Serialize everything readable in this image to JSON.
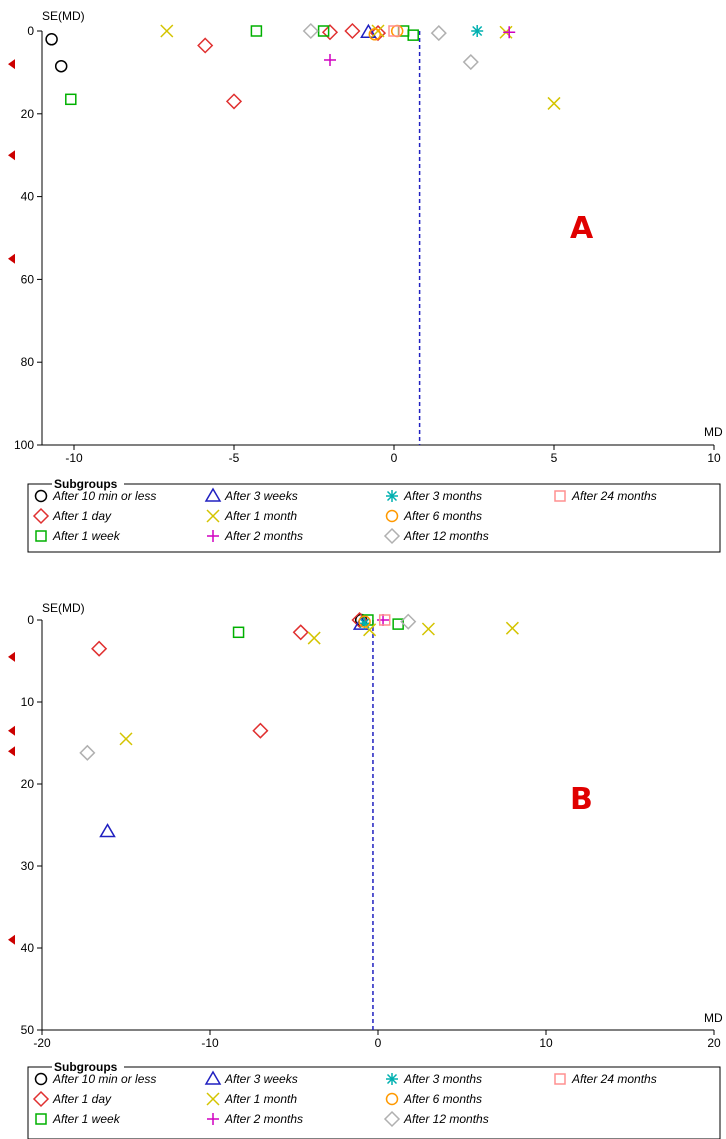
{
  "panels": [
    {
      "letter": "A",
      "chart_data": {
        "type": "scatter",
        "title": "",
        "ylabel": "SE(MD)",
        "xlabel": "MD",
        "xlim": [
          -11,
          10
        ],
        "ylim": [
          0,
          100
        ],
        "y_reversed": true,
        "x_ticks": [
          -10,
          -5,
          0,
          5,
          10
        ],
        "y_ticks": [
          0,
          20,
          40,
          60,
          80,
          100
        ],
        "reference_line_x": 0.8,
        "left_arrow_y": [
          8,
          30,
          55
        ],
        "legend_position": "bottom",
        "series": [
          {
            "name": "After 10 min or less",
            "marker": "circle",
            "color": "#000000",
            "points": [
              [
                -10.7,
                2
              ],
              [
                -10.4,
                8.5
              ]
            ]
          },
          {
            "name": "After 1 day",
            "marker": "diamond",
            "color": "#e03030",
            "points": [
              [
                -5.9,
                3.5
              ],
              [
                -5.0,
                17
              ],
              [
                -2.0,
                0.3
              ],
              [
                -1.3,
                0
              ],
              [
                -0.5,
                0.5
              ]
            ]
          },
          {
            "name": "After 1 week",
            "marker": "square",
            "color": "#00b000",
            "points": [
              [
                -10.1,
                16.5
              ],
              [
                -4.3,
                0
              ],
              [
                -2.2,
                0
              ],
              [
                0.3,
                0
              ],
              [
                0.6,
                1
              ]
            ]
          },
          {
            "name": "After 3 weeks",
            "marker": "triangle",
            "color": "#2020c0",
            "points": [
              [
                -0.8,
                0.3
              ]
            ]
          },
          {
            "name": "After 1 month",
            "marker": "x",
            "color": "#d4c400",
            "points": [
              [
                -7.1,
                0
              ],
              [
                -0.5,
                0
              ],
              [
                3.5,
                0.3
              ],
              [
                5.0,
                17.5
              ]
            ]
          },
          {
            "name": "After 2 months",
            "marker": "plus",
            "color": "#d000c0",
            "points": [
              [
                -2.0,
                7
              ],
              [
                3.6,
                0.3
              ]
            ]
          },
          {
            "name": "After 3 months",
            "marker": "asterisk",
            "color": "#00b0b0",
            "points": [
              [
                2.6,
                0
              ]
            ]
          },
          {
            "name": "After 6 months",
            "marker": "circle",
            "color": "#ff9900",
            "points": [
              [
                -0.6,
                0.8
              ],
              [
                0.1,
                0
              ]
            ]
          },
          {
            "name": "After 12 months",
            "marker": "diamond",
            "color": "#b0b0b0",
            "points": [
              [
                -2.6,
                0
              ],
              [
                1.4,
                0.5
              ],
              [
                2.4,
                7.5
              ]
            ]
          },
          {
            "name": "After 24 months",
            "marker": "square",
            "color": "#ff9090",
            "points": [
              [
                0.0,
                0
              ]
            ]
          }
        ]
      },
      "legend": {
        "title": "Subgroups",
        "items": [
          "After 10 min or less",
          "After 3 weeks",
          "After 3 months",
          "After 24 months",
          "After 1 day",
          "After 1 month",
          "After 6 months",
          "After 1 week",
          "After 2 months",
          "After 12 months"
        ]
      }
    },
    {
      "letter": "B",
      "chart_data": {
        "type": "scatter",
        "title": "",
        "ylabel": "SE(MD)",
        "xlabel": "MD",
        "xlim": [
          -20,
          20
        ],
        "ylim": [
          0,
          50
        ],
        "y_reversed": true,
        "x_ticks": [
          -20,
          -10,
          0,
          10,
          20
        ],
        "y_ticks": [
          0,
          10,
          20,
          30,
          40,
          50
        ],
        "reference_line_x": -0.3,
        "left_arrow_y": [
          4.5,
          13.5,
          16,
          39
        ],
        "legend_position": "bottom",
        "series": [
          {
            "name": "After 10 min or less",
            "marker": "circle",
            "color": "#000000",
            "points": [
              [
                -1.0,
                0
              ]
            ]
          },
          {
            "name": "After 1 day",
            "marker": "diamond",
            "color": "#e03030",
            "points": [
              [
                -16.6,
                3.5
              ],
              [
                -7.0,
                13.5
              ],
              [
                -4.6,
                1.5
              ],
              [
                -1.1,
                0
              ]
            ]
          },
          {
            "name": "After 1 week",
            "marker": "square",
            "color": "#00b000",
            "points": [
              [
                -8.3,
                1.5
              ],
              [
                -0.6,
                0
              ],
              [
                1.2,
                0.5
              ]
            ]
          },
          {
            "name": "After 3 weeks",
            "marker": "triangle",
            "color": "#2020c0",
            "points": [
              [
                -16.1,
                25.8
              ],
              [
                -1.0,
                0.5
              ]
            ]
          },
          {
            "name": "After 1 month",
            "marker": "x",
            "color": "#d4c400",
            "points": [
              [
                -15.0,
                14.5
              ],
              [
                -3.8,
                2.2
              ],
              [
                -0.5,
                1.2
              ],
              [
                3.0,
                1.1
              ],
              [
                8.0,
                1.0
              ]
            ]
          },
          {
            "name": "After 2 months",
            "marker": "plus",
            "color": "#d000c0",
            "points": [
              [
                0.3,
                0
              ]
            ]
          },
          {
            "name": "After 3 months",
            "marker": "asterisk",
            "color": "#00b0b0",
            "points": [
              [
                -0.8,
                0.4
              ]
            ]
          },
          {
            "name": "After 6 months",
            "marker": "circle",
            "color": "#ff9900",
            "points": [
              [
                -0.8,
                0.2
              ]
            ]
          },
          {
            "name": "After 12 months",
            "marker": "diamond",
            "color": "#b0b0b0",
            "points": [
              [
                -17.3,
                16.2
              ],
              [
                1.8,
                0.2
              ]
            ]
          },
          {
            "name": "After 24 months",
            "marker": "square",
            "color": "#ff9090",
            "points": [
              [
                0.4,
                0
              ]
            ]
          }
        ]
      },
      "legend": {
        "title": "Subgroups",
        "items": [
          "After 10 min or less",
          "After 3 weeks",
          "After 3 months",
          "After 24 months",
          "After 1 day",
          "After 1 month",
          "After 6 months",
          "After 1 week",
          "After 2 months",
          "After 12 months"
        ]
      }
    }
  ],
  "colors": {
    "reference_line": "#2020c0",
    "panel_letter": "#e00000",
    "arrow": "#cc0000"
  }
}
